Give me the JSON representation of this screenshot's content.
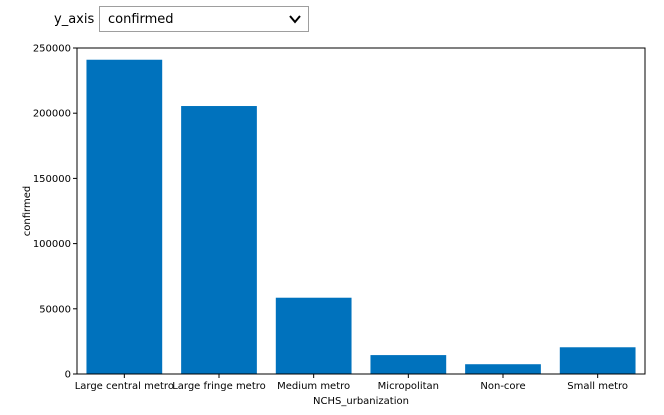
{
  "controls": {
    "y_axis_label": "y_axis",
    "y_axis_selected": "confirmed"
  },
  "chart_data": {
    "type": "bar",
    "categories": [
      "Large central metro",
      "Large fringe metro",
      "Medium metro",
      "Micropolitan",
      "Non-core",
      "Small metro"
    ],
    "values": [
      241000,
      205500,
      58500,
      14500,
      7500,
      20500
    ],
    "xlabel": "NCHS_urbanization",
    "ylabel": "confirmed",
    "ylim": [
      0,
      250000
    ],
    "yticks": [
      0,
      50000,
      100000,
      150000,
      200000,
      250000
    ],
    "bar_color": "#0072bd"
  }
}
